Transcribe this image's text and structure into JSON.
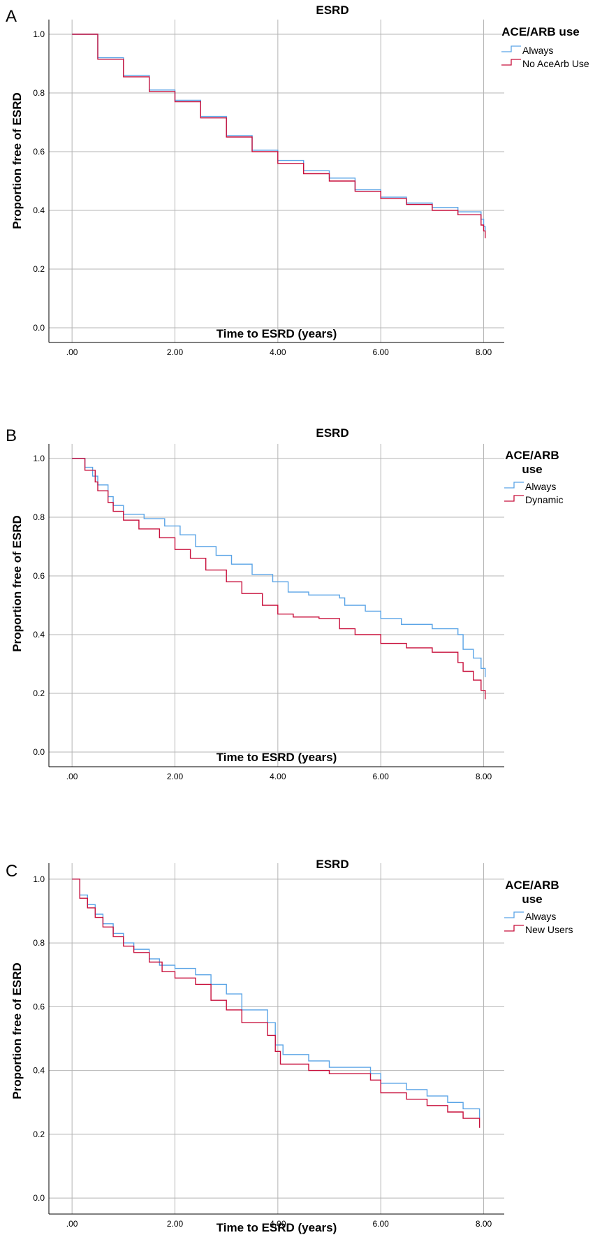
{
  "colors": {
    "always": "#5aa4e6",
    "other": "#c8103c",
    "grid": "#b4b4b4",
    "axis": "#000000"
  },
  "panels": [
    {
      "letter": "A",
      "title": "ESRD",
      "xlabel": "Time to ESRD (years)",
      "ylabel": "Proportion free of ESRD",
      "legend_title": "ACE/ARB use",
      "legend_items": [
        "Always",
        "No AceArb Use"
      ]
    },
    {
      "letter": "B",
      "title": "ESRD",
      "xlabel": "Time to ESRD (years)",
      "ylabel": "Proportion free of ESRD",
      "legend_title": "ACE/ARB use",
      "legend_items": [
        "Always",
        "Dynamic"
      ]
    },
    {
      "letter": "C",
      "title": "ESRD",
      "xlabel": "Time to ESRD (years)",
      "ylabel": "Proportion free of ESRD",
      "legend_title": "ACE/ARB use",
      "legend_items": [
        "Always",
        "New Users"
      ]
    }
  ],
  "chart_data": [
    {
      "type": "line",
      "title": "ESRD",
      "xlabel": "Time to ESRD (years)",
      "ylabel": "Proportion free of ESRD",
      "x_ticks": [
        ".00",
        "2.00",
        "4.00",
        "6.00",
        "8.00"
      ],
      "y_ticks": [
        "0.0",
        "0.2",
        "0.4",
        "0.6",
        "0.8",
        "1.0"
      ],
      "xlim": [
        -0.45,
        8.4
      ],
      "ylim": [
        -0.05,
        1.05
      ],
      "step": true,
      "grid": true,
      "legend_position": "right",
      "legend_title": "ACE/ARB use",
      "series": [
        {
          "name": "Always",
          "color": "#5aa4e6",
          "x": [
            0,
            0.5,
            1.0,
            1.5,
            2.0,
            2.5,
            3.0,
            3.5,
            4.0,
            4.5,
            5.0,
            5.5,
            6.0,
            6.5,
            7.0,
            7.5,
            7.95,
            8.0,
            8.03
          ],
          "y": [
            1.0,
            0.92,
            0.86,
            0.81,
            0.775,
            0.72,
            0.655,
            0.605,
            0.57,
            0.535,
            0.51,
            0.47,
            0.445,
            0.425,
            0.41,
            0.395,
            0.37,
            0.345,
            0.33
          ]
        },
        {
          "name": "No AceArb Use",
          "color": "#c8103c",
          "x": [
            0,
            0.5,
            1.0,
            1.5,
            2.0,
            2.5,
            3.0,
            3.5,
            4.0,
            4.5,
            5.0,
            5.5,
            6.0,
            6.5,
            7.0,
            7.5,
            7.95,
            8.0,
            8.03
          ],
          "y": [
            1.0,
            0.915,
            0.855,
            0.805,
            0.77,
            0.715,
            0.65,
            0.6,
            0.56,
            0.525,
            0.5,
            0.465,
            0.44,
            0.42,
            0.4,
            0.385,
            0.35,
            0.33,
            0.305
          ]
        }
      ]
    },
    {
      "type": "line",
      "title": "ESRD",
      "xlabel": "Time to ESRD (years)",
      "ylabel": "Proportion free of ESRD",
      "x_ticks": [
        ".00",
        "2.00",
        "4.00",
        "6.00",
        "8.00"
      ],
      "y_ticks": [
        "0.0",
        "0.2",
        "0.4",
        "0.6",
        "0.8",
        "1.0"
      ],
      "xlim": [
        -0.45,
        8.4
      ],
      "ylim": [
        -0.05,
        1.05
      ],
      "step": true,
      "grid": true,
      "legend_position": "right",
      "legend_title": "ACE/ARB use",
      "series": [
        {
          "name": "Always",
          "color": "#5aa4e6",
          "x": [
            0,
            0.25,
            0.4,
            0.5,
            0.7,
            0.8,
            1.0,
            1.4,
            1.8,
            2.1,
            2.4,
            2.8,
            3.1,
            3.5,
            3.9,
            4.2,
            4.6,
            5.2,
            5.3,
            5.7,
            6.0,
            6.4,
            7.0,
            7.5,
            7.6,
            7.8,
            7.95,
            8.03
          ],
          "y": [
            1.0,
            0.97,
            0.94,
            0.91,
            0.87,
            0.84,
            0.81,
            0.795,
            0.77,
            0.74,
            0.7,
            0.67,
            0.64,
            0.605,
            0.58,
            0.545,
            0.535,
            0.525,
            0.5,
            0.48,
            0.455,
            0.435,
            0.42,
            0.4,
            0.35,
            0.32,
            0.285,
            0.255
          ]
        },
        {
          "name": "Dynamic",
          "color": "#c8103c",
          "x": [
            0,
            0.25,
            0.45,
            0.5,
            0.7,
            0.8,
            1.0,
            1.3,
            1.7,
            2.0,
            2.3,
            2.6,
            3.0,
            3.3,
            3.7,
            4.0,
            4.3,
            4.8,
            5.2,
            5.5,
            6.0,
            6.5,
            7.0,
            7.5,
            7.6,
            7.8,
            7.95,
            8.03
          ],
          "y": [
            1.0,
            0.96,
            0.92,
            0.89,
            0.85,
            0.82,
            0.79,
            0.76,
            0.73,
            0.69,
            0.66,
            0.62,
            0.58,
            0.54,
            0.5,
            0.47,
            0.46,
            0.455,
            0.42,
            0.4,
            0.37,
            0.355,
            0.34,
            0.305,
            0.275,
            0.245,
            0.21,
            0.18
          ]
        }
      ]
    },
    {
      "type": "line",
      "title": "ESRD",
      "xlabel": "Time to ESRD (years)",
      "ylabel": "Proportion free of ESRD",
      "x_ticks": [
        ".00",
        "2.00",
        "4.00",
        "6.00",
        "8.00"
      ],
      "y_ticks": [
        "0.0",
        "0.2",
        "0.4",
        "0.6",
        "0.8",
        "1.0"
      ],
      "xlim": [
        -0.45,
        8.4
      ],
      "ylim": [
        -0.05,
        1.05
      ],
      "step": true,
      "grid": true,
      "legend_position": "right",
      "legend_title": "ACE/ARB use",
      "series": [
        {
          "name": "Always",
          "color": "#5aa4e6",
          "x": [
            0,
            0.15,
            0.3,
            0.45,
            0.6,
            0.8,
            1.0,
            1.2,
            1.5,
            1.7,
            2.0,
            2.4,
            2.7,
            3.0,
            3.3,
            3.8,
            3.95,
            4.1,
            4.6,
            5.0,
            5.8,
            6.0,
            6.5,
            6.9,
            7.3,
            7.6,
            7.92
          ],
          "y": [
            1.0,
            0.95,
            0.92,
            0.89,
            0.86,
            0.83,
            0.8,
            0.78,
            0.75,
            0.73,
            0.72,
            0.7,
            0.67,
            0.64,
            0.59,
            0.55,
            0.48,
            0.45,
            0.43,
            0.41,
            0.39,
            0.36,
            0.34,
            0.32,
            0.3,
            0.28,
            0.25
          ]
        },
        {
          "name": "New Users",
          "color": "#c8103c",
          "x": [
            0,
            0.15,
            0.3,
            0.45,
            0.6,
            0.8,
            1.0,
            1.2,
            1.5,
            1.75,
            2.0,
            2.4,
            2.7,
            3.0,
            3.3,
            3.8,
            3.95,
            4.05,
            4.6,
            5.0,
            5.8,
            6.0,
            6.5,
            6.9,
            7.3,
            7.6,
            7.92
          ],
          "y": [
            1.0,
            0.94,
            0.91,
            0.88,
            0.85,
            0.82,
            0.79,
            0.77,
            0.74,
            0.71,
            0.69,
            0.67,
            0.62,
            0.59,
            0.55,
            0.51,
            0.46,
            0.42,
            0.4,
            0.39,
            0.37,
            0.33,
            0.31,
            0.29,
            0.27,
            0.25,
            0.22
          ]
        }
      ]
    }
  ]
}
